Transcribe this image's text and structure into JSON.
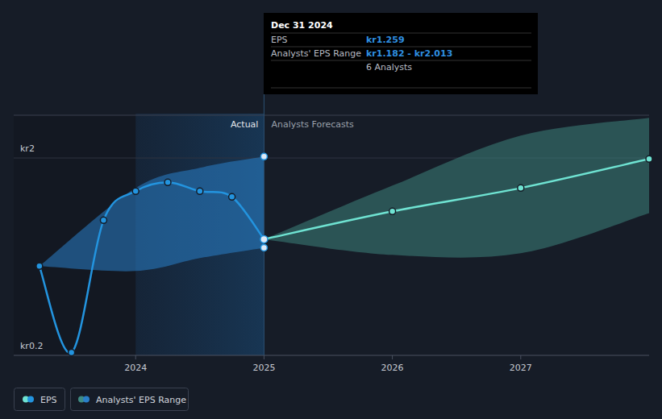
{
  "chart_data": {
    "type": "line",
    "xlim": [
      2023.05,
      2028.0
    ],
    "xticks": [
      2024,
      2025,
      2026,
      2027
    ],
    "ylim": [
      0.2,
      2.39
    ],
    "yticks": [
      {
        "value": 0.2,
        "label": "kr0.2"
      },
      {
        "value": 2,
        "label": "kr2"
      }
    ],
    "grid": true,
    "legend": "bottom-left",
    "annotations": [
      "Actual"
    ],
    "series": [
      {
        "name": "EPS",
        "color": "#2394df",
        "marker": "circle",
        "line_style": "solid",
        "x": [
          2023.25,
          2023.5,
          2023.75,
          2024.0,
          2024.25,
          2024.5,
          2024.75,
          2025.0
        ],
        "values": [
          1.013,
          0.226,
          1.432,
          1.697,
          1.778,
          1.697,
          1.645,
          1.259
        ]
      },
      {
        "name": "Analysts Forecasts",
        "color": "#6fe3d2",
        "marker": "circle",
        "line_style": "solid",
        "x": [
          2025.0,
          2026.0,
          2027.0,
          2028.0
        ],
        "values": [
          1.259,
          1.513,
          1.726,
          1.991
        ]
      }
    ],
    "range": {
      "name": "Analysts' EPS Range",
      "actual": {
        "color": "#2a7fc9",
        "x": [
          2023.25,
          2024.0,
          2024.5,
          2025.0
        ],
        "low": [
          1.013,
          0.969,
          1.087,
          1.182
        ],
        "high": [
          1.013,
          1.726,
          1.91,
          2.013
        ]
      },
      "forecast": {
        "color": "#3f8c84",
        "x": [
          2025.0,
          2026.0,
          2027.0,
          2028.0
        ],
        "low": [
          1.259,
          1.116,
          1.131,
          1.498
        ],
        "high": [
          1.259,
          1.748,
          2.204,
          2.366
        ]
      }
    },
    "tooltip": {
      "x": 2025.0,
      "date": "Dec 31 2024",
      "rows": [
        {
          "label": "EPS",
          "value": "kr1.259"
        },
        {
          "label": "Analysts' EPS Range",
          "value": "kr1.182 - kr2.013"
        }
      ],
      "note": "6 Analysts"
    }
  }
}
